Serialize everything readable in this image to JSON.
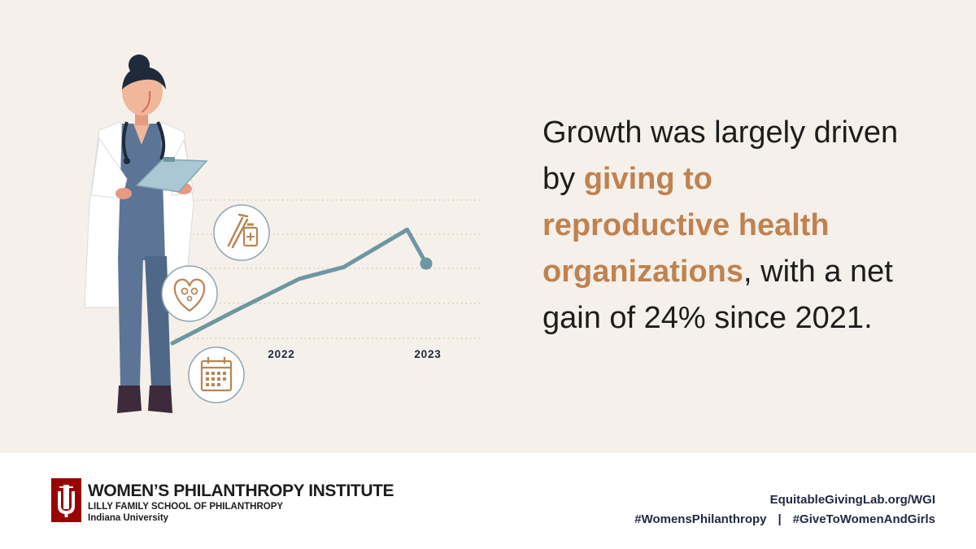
{
  "headline": {
    "part1": "Growth was largely driven by ",
    "highlight": "giving to reproductive health organizations",
    "part2": ", with a net gain of 24% since 2021."
  },
  "chart_data": {
    "type": "line",
    "title": "",
    "xlabel": "",
    "ylabel": "",
    "tick_labels": [
      "2022",
      "2023"
    ],
    "x": [
      2021,
      2021.5,
      2022,
      2022.35,
      2022.85,
      2023
    ],
    "values": [
      0,
      0.28,
      0.55,
      0.65,
      0.97,
      0.68
    ],
    "ylim": [
      0,
      1
    ],
    "grid": true,
    "line_color": "#6e96a3",
    "marker_color": "#6e96a3"
  },
  "icons": [
    "syringe-vial-icon",
    "heart-family-icon",
    "calendar-icon"
  ],
  "colors": {
    "background": "#f6f0ea",
    "accent": "#c08250",
    "iu_red": "#990000",
    "line": "#6e96a3"
  },
  "footer": {
    "org_name": "WOMEN’S PHILANTHROPY INSTITUTE",
    "org_sub": "LILLY FAMILY SCHOOL OF PHILANTHROPY",
    "org_univ": "Indiana University",
    "url": "EquitableGivingLab.org/WGI",
    "hashtag1": "#WomensPhilanthropy",
    "separator": "|",
    "hashtag2": "#GiveToWomenAndGirls"
  }
}
